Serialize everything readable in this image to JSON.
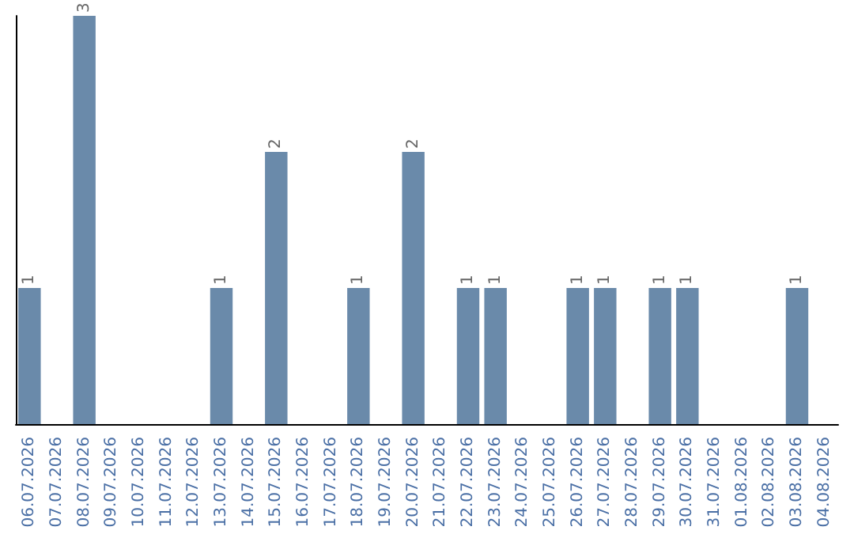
{
  "chart_data": {
    "type": "bar",
    "categories": [
      "06.07.2026",
      "07.07.2026",
      "08.07.2026",
      "09.07.2026",
      "10.07.2026",
      "11.07.2026",
      "12.07.2026",
      "13.07.2026",
      "14.07.2026",
      "15.07.2026",
      "16.07.2026",
      "17.07.2026",
      "18.07.2026",
      "19.07.2026",
      "20.07.2026",
      "21.07.2026",
      "22.07.2026",
      "23.07.2026",
      "24.07.2026",
      "25.07.2026",
      "26.07.2026",
      "27.07.2026",
      "28.07.2026",
      "29.07.2026",
      "30.07.2026",
      "31.07.2026",
      "01.08.2026",
      "02.08.2026",
      "03.08.2026",
      "04.08.2026"
    ],
    "values": [
      1,
      0,
      3,
      0,
      0,
      0,
      0,
      1,
      0,
      2,
      0,
      0,
      1,
      0,
      2,
      0,
      1,
      1,
      0,
      0,
      1,
      1,
      0,
      1,
      1,
      0,
      0,
      0,
      1,
      0
    ],
    "value_labels": [
      "1",
      null,
      "3",
      null,
      null,
      null,
      null,
      "1",
      null,
      "2",
      null,
      null,
      "1",
      null,
      "2",
      null,
      "1",
      "1",
      null,
      null,
      "1",
      "1",
      null,
      "1",
      "1",
      null,
      null,
      null,
      "1",
      null
    ],
    "color": "#6a8aaa",
    "grid": false,
    "tick_labels": "x"
  }
}
